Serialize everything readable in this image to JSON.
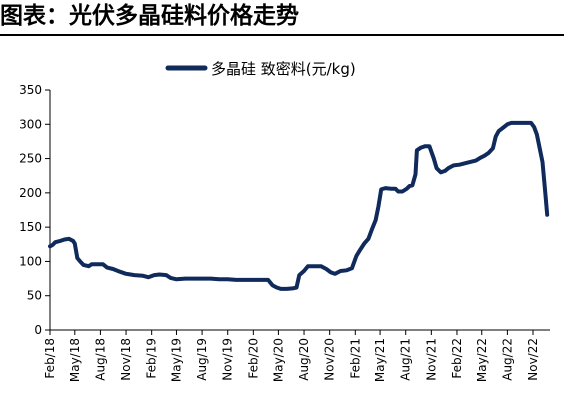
{
  "figure_title": "图表：光伏多晶硅料价格走势",
  "colors": {
    "series": "#0f2a5b",
    "axis": "#000000"
  },
  "chart_data": {
    "type": "line",
    "title": "图表：光伏多晶硅料价格走势",
    "xlabel": "",
    "ylabel": "",
    "ylim": [
      0,
      350
    ],
    "yticks": [
      0,
      50,
      100,
      150,
      200,
      250,
      300,
      350
    ],
    "xlim": [
      "2018-02",
      "2023-01"
    ],
    "x_tick_labels": [
      "Feb/18",
      "May/18",
      "Aug/18",
      "Nov/18",
      "Feb/19",
      "May/19",
      "Aug/19",
      "Nov/19",
      "Feb/20",
      "May/20",
      "Aug/20",
      "Nov/20",
      "Feb/21",
      "May/21",
      "Aug/21",
      "Nov/21",
      "Feb/22",
      "May/22",
      "Aug/22",
      "Nov/22"
    ],
    "grid": false,
    "legend_position": "top-center",
    "series": [
      {
        "name": "多晶硅 致密料(元/kg)",
        "points": [
          [
            "2018-02-01",
            122
          ],
          [
            "2018-02-10",
            124
          ],
          [
            "2018-02-20",
            128
          ],
          [
            "2018-03-10",
            130
          ],
          [
            "2018-03-25",
            132
          ],
          [
            "2018-04-10",
            133
          ],
          [
            "2018-04-25",
            130
          ],
          [
            "2018-05-01",
            126
          ],
          [
            "2018-05-10",
            105
          ],
          [
            "2018-05-20",
            100
          ],
          [
            "2018-06-01",
            95
          ],
          [
            "2018-06-20",
            93
          ],
          [
            "2018-07-01",
            96
          ],
          [
            "2018-07-20",
            96
          ],
          [
            "2018-08-10",
            96
          ],
          [
            "2018-08-25",
            91
          ],
          [
            "2018-09-15",
            89
          ],
          [
            "2018-10-10",
            85
          ],
          [
            "2018-11-01",
            82
          ],
          [
            "2018-12-01",
            80
          ],
          [
            "2019-01-01",
            79
          ],
          [
            "2019-01-20",
            77
          ],
          [
            "2019-02-10",
            80
          ],
          [
            "2019-03-01",
            81
          ],
          [
            "2019-03-25",
            80
          ],
          [
            "2019-04-10",
            76
          ],
          [
            "2019-05-01",
            74
          ],
          [
            "2019-06-01",
            75
          ],
          [
            "2019-07-01",
            75
          ],
          [
            "2019-08-01",
            75
          ],
          [
            "2019-09-01",
            75
          ],
          [
            "2019-10-01",
            74
          ],
          [
            "2019-11-01",
            74
          ],
          [
            "2019-12-01",
            73
          ],
          [
            "2020-01-01",
            73
          ],
          [
            "2020-02-01",
            73
          ],
          [
            "2020-03-01",
            73
          ],
          [
            "2020-03-25",
            73
          ],
          [
            "2020-04-10",
            65
          ],
          [
            "2020-04-25",
            62
          ],
          [
            "2020-05-10",
            60
          ],
          [
            "2020-06-01",
            60
          ],
          [
            "2020-06-25",
            61
          ],
          [
            "2020-07-05",
            62
          ],
          [
            "2020-07-15",
            80
          ],
          [
            "2020-08-01",
            86
          ],
          [
            "2020-08-15",
            93
          ],
          [
            "2020-09-10",
            93
          ],
          [
            "2020-10-01",
            93
          ],
          [
            "2020-10-20",
            89
          ],
          [
            "2020-11-05",
            84
          ],
          [
            "2020-11-20",
            82
          ],
          [
            "2020-12-10",
            86
          ],
          [
            "2021-01-01",
            87
          ],
          [
            "2021-01-20",
            90
          ],
          [
            "2021-02-05",
            108
          ],
          [
            "2021-02-20",
            118
          ],
          [
            "2021-03-05",
            126
          ],
          [
            "2021-03-20",
            133
          ],
          [
            "2021-04-01",
            146
          ],
          [
            "2021-04-15",
            160
          ],
          [
            "2021-04-25",
            180
          ],
          [
            "2021-05-05",
            205
          ],
          [
            "2021-05-20",
            207
          ],
          [
            "2021-06-10",
            206
          ],
          [
            "2021-06-25",
            206
          ],
          [
            "2021-07-05",
            202
          ],
          [
            "2021-07-20",
            202
          ],
          [
            "2021-08-05",
            206
          ],
          [
            "2021-08-15",
            210
          ],
          [
            "2021-08-25",
            211
          ],
          [
            "2021-09-05",
            227
          ],
          [
            "2021-09-10",
            262
          ],
          [
            "2021-09-25",
            266
          ],
          [
            "2021-10-10",
            268
          ],
          [
            "2021-10-25",
            268
          ],
          [
            "2021-11-10",
            250
          ],
          [
            "2021-11-20",
            236
          ],
          [
            "2021-12-05",
            230
          ],
          [
            "2021-12-20",
            232
          ],
          [
            "2022-01-01",
            236
          ],
          [
            "2022-01-20",
            240
          ],
          [
            "2022-02-10",
            241
          ],
          [
            "2022-03-10",
            244
          ],
          [
            "2022-04-10",
            247
          ],
          [
            "2022-04-25",
            251
          ],
          [
            "2022-05-10",
            254
          ],
          [
            "2022-05-25",
            258
          ],
          [
            "2022-06-10",
            265
          ],
          [
            "2022-06-20",
            282
          ],
          [
            "2022-07-01",
            290
          ],
          [
            "2022-07-20",
            296
          ],
          [
            "2022-08-01",
            300
          ],
          [
            "2022-08-15",
            302
          ],
          [
            "2022-09-10",
            302
          ],
          [
            "2022-10-10",
            302
          ],
          [
            "2022-10-25",
            302
          ],
          [
            "2022-11-05",
            296
          ],
          [
            "2022-11-15",
            285
          ],
          [
            "2022-11-25",
            265
          ],
          [
            "2022-12-05",
            245
          ],
          [
            "2022-12-15",
            200
          ],
          [
            "2022-12-22",
            168
          ]
        ]
      }
    ]
  }
}
